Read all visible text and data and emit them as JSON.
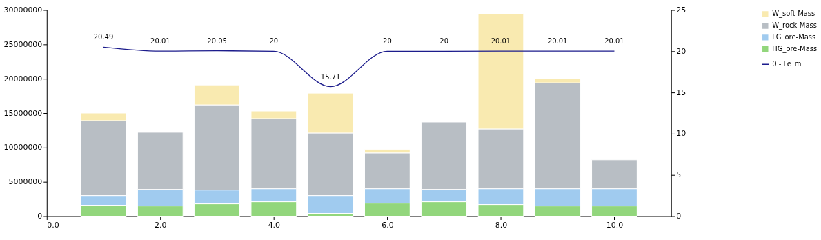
{
  "chart_data": {
    "type": "bar",
    "stacked": true,
    "x": [
      1,
      2,
      3,
      4,
      5,
      6,
      7,
      8,
      9,
      10
    ],
    "xlim": [
      0,
      11
    ],
    "xticks": [
      {
        "value": 0,
        "label": "0.0"
      },
      {
        "value": 2,
        "label": "2.0"
      },
      {
        "value": 4,
        "label": "4.0"
      },
      {
        "value": 6,
        "label": "6.0"
      },
      {
        "value": 8,
        "label": "8.0"
      },
      {
        "value": 10,
        "label": "10.0"
      }
    ],
    "ylim": [
      0,
      30000000
    ],
    "yticks": [
      0,
      5000000,
      10000000,
      15000000,
      20000000,
      25000000,
      30000000
    ],
    "y2lim": [
      0,
      25
    ],
    "y2ticks": [
      0,
      5,
      10,
      15,
      20,
      25
    ],
    "grid": false,
    "legend": "top right",
    "series": [
      {
        "name": "HG_ore-Mass",
        "color": "#92d67c",
        "values": [
          1600000,
          1500000,
          1800000,
          2100000,
          400000,
          1900000,
          2100000,
          1700000,
          1500000,
          1500000
        ]
      },
      {
        "name": "LG_ore-Mass",
        "color": "#a0cbef",
        "values": [
          1400000,
          2400000,
          2000000,
          1900000,
          2600000,
          2100000,
          1800000,
          2300000,
          2500000,
          2500000
        ]
      },
      {
        "name": "W_rock-Mass",
        "color": "#b8bec4",
        "values": [
          10900000,
          8300000,
          12400000,
          10200000,
          9100000,
          5200000,
          9800000,
          8700000,
          15400000,
          4200000
        ]
      },
      {
        "name": "W_soft-Mass",
        "color": "#f9eab0",
        "values": [
          1100000,
          0,
          2900000,
          1100000,
          5800000,
          500000,
          0,
          16800000,
          600000,
          0
        ]
      },
      {
        "name": "0 - Fe_m",
        "type": "line",
        "axis": "y2",
        "color": "#1c1c8c",
        "data_labels": true,
        "marker": "none",
        "line_style": "solid",
        "values": [
          20.49,
          20.01,
          20.05,
          20,
          15.71,
          20,
          20,
          20.01,
          20.01,
          20.01
        ]
      }
    ]
  }
}
